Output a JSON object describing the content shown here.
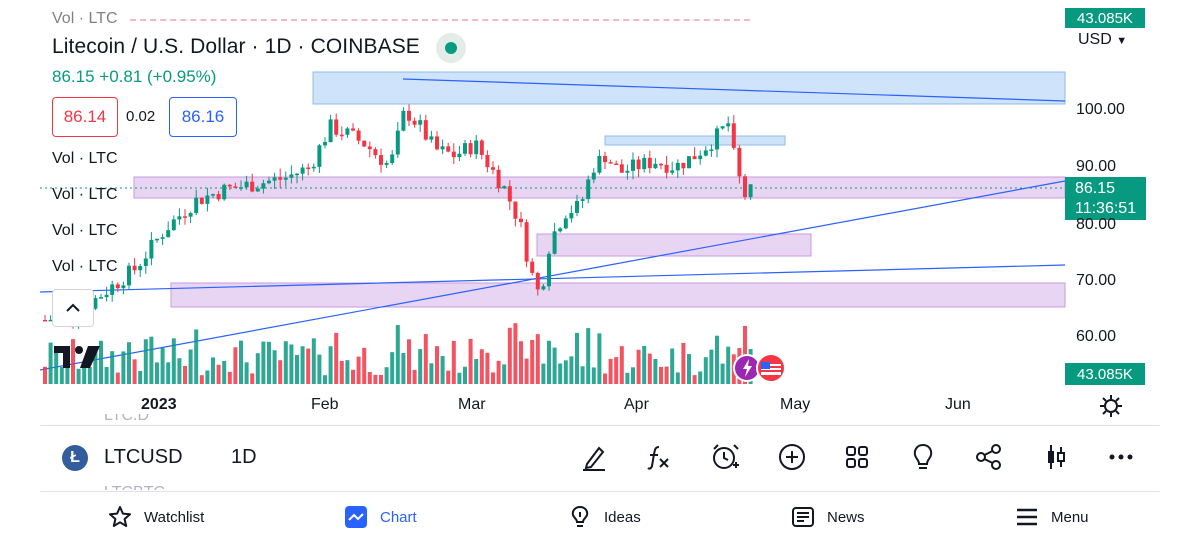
{
  "chart": {
    "title": "Litecoin / U.S. Dollar · 1D · COINBASE",
    "price_line": "86.15  +0.81 (+0.95%)",
    "bid": "86.14",
    "spread": "0.02",
    "ask": "86.16",
    "vol_labels": [
      "Vol · LTC",
      "Vol · LTC",
      "Vol · LTC",
      "Vol · LTC"
    ],
    "top_vol_label": "Vol · LTC",
    "currency": "USD",
    "price_axis": [
      "100.00",
      "90.00",
      "80.00",
      "70.00",
      "60.00"
    ],
    "time_axis": [
      "2023",
      "Feb",
      "Mar",
      "Apr",
      "May",
      "Jun"
    ],
    "current_price": "86.15",
    "countdown": "11:36:51",
    "volume_tag": "43.085K",
    "volume_tag_top": "43.085K",
    "colors": {
      "up": "#089981",
      "down": "#f23645",
      "accent": "#2962ff",
      "zone_purple": "#e8d4f3",
      "zone_blue": "#cfe3fa"
    }
  },
  "symbol_bar": {
    "prev_symbol": "LTC.D",
    "symbol": "LTCUSD",
    "interval": "1D",
    "next_symbol": "LTCBTC",
    "tools": [
      "drawing-pen-icon",
      "indicators-fx-icon",
      "alert-clock-icon",
      "add-compare-icon",
      "layouts-grid-icon",
      "ideas-bulb-icon",
      "share-icon",
      "chart-type-candles-icon",
      "more-icon"
    ]
  },
  "nav": {
    "watchlist": "Watchlist",
    "chart": "Chart",
    "ideas": "Ideas",
    "news": "News",
    "menu": "Menu"
  }
}
